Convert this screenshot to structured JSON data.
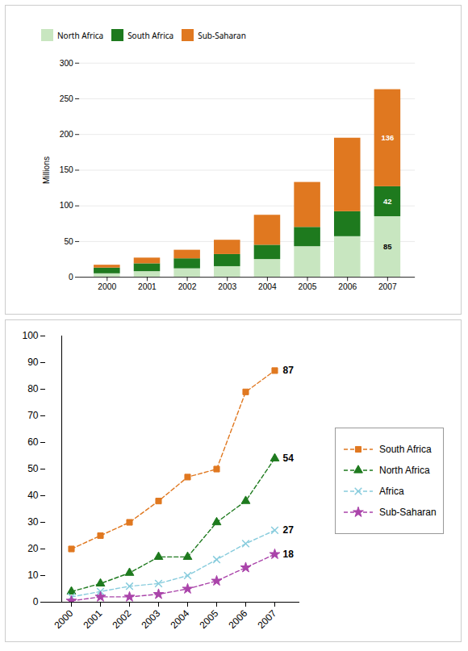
{
  "chart_data": [
    {
      "type": "bar",
      "stacked": true,
      "categories": [
        "2000",
        "2001",
        "2002",
        "2003",
        "2004",
        "2005",
        "2006",
        "2007"
      ],
      "series": [
        {
          "name": "North Africa",
          "color": "#c8e6c0",
          "values": [
            5,
            8,
            12,
            15,
            25,
            43,
            57,
            85
          ],
          "value_labels": [
            null,
            null,
            null,
            null,
            null,
            null,
            null,
            "85"
          ]
        },
        {
          "name": "South Africa",
          "color": "#1e7a1e",
          "values": [
            8,
            11,
            14,
            17,
            20,
            27,
            35,
            42
          ],
          "value_labels": [
            null,
            null,
            null,
            null,
            null,
            null,
            null,
            "42"
          ]
        },
        {
          "name": "Sub-Saharan",
          "color": "#e07820",
          "values": [
            4,
            8,
            12,
            20,
            42,
            63,
            103,
            136
          ],
          "value_labels": [
            null,
            null,
            null,
            null,
            null,
            null,
            null,
            "136"
          ]
        }
      ],
      "ylabel": "Millions",
      "ylim": [
        0,
        300
      ],
      "yticks": [
        0,
        50,
        100,
        150,
        200,
        250,
        300
      ],
      "grid": true,
      "legend": "top"
    },
    {
      "type": "line",
      "categories": [
        "2000",
        "2001",
        "2002",
        "2003",
        "2004",
        "2005",
        "2006",
        "2007"
      ],
      "series": [
        {
          "name": "South Africa",
          "color": "#e07820",
          "marker": "square",
          "line_style": "dashed",
          "values": [
            20,
            25,
            30,
            38,
            47,
            50,
            79,
            87
          ],
          "value_labels": [
            null,
            null,
            null,
            null,
            null,
            null,
            null,
            "87"
          ]
        },
        {
          "name": "North Africa",
          "color": "#1e7a1e",
          "marker": "triangle",
          "line_style": "dashed",
          "values": [
            4,
            7,
            11,
            17,
            17,
            30,
            38,
            54
          ],
          "value_labels": [
            null,
            null,
            null,
            null,
            null,
            null,
            null,
            "54"
          ]
        },
        {
          "name": "Africa",
          "color": "#88ccdd",
          "marker": "x",
          "line_style": "dashed",
          "values": [
            2,
            4,
            6,
            7,
            10,
            16,
            22,
            27
          ],
          "value_labels": [
            null,
            null,
            null,
            null,
            null,
            null,
            null,
            "27"
          ]
        },
        {
          "name": "Sub-Saharan",
          "color": "#aa44aa",
          "marker": "star",
          "line_style": "dashed",
          "values": [
            0.5,
            2,
            2,
            3,
            5,
            8,
            13,
            18
          ],
          "value_labels": [
            null,
            null,
            null,
            null,
            null,
            null,
            null,
            "18"
          ]
        }
      ],
      "ylim": [
        0,
        100
      ],
      "yticks": [
        0,
        10,
        20,
        30,
        40,
        50,
        60,
        70,
        80,
        90,
        100
      ],
      "grid": false,
      "legend": "right"
    }
  ]
}
